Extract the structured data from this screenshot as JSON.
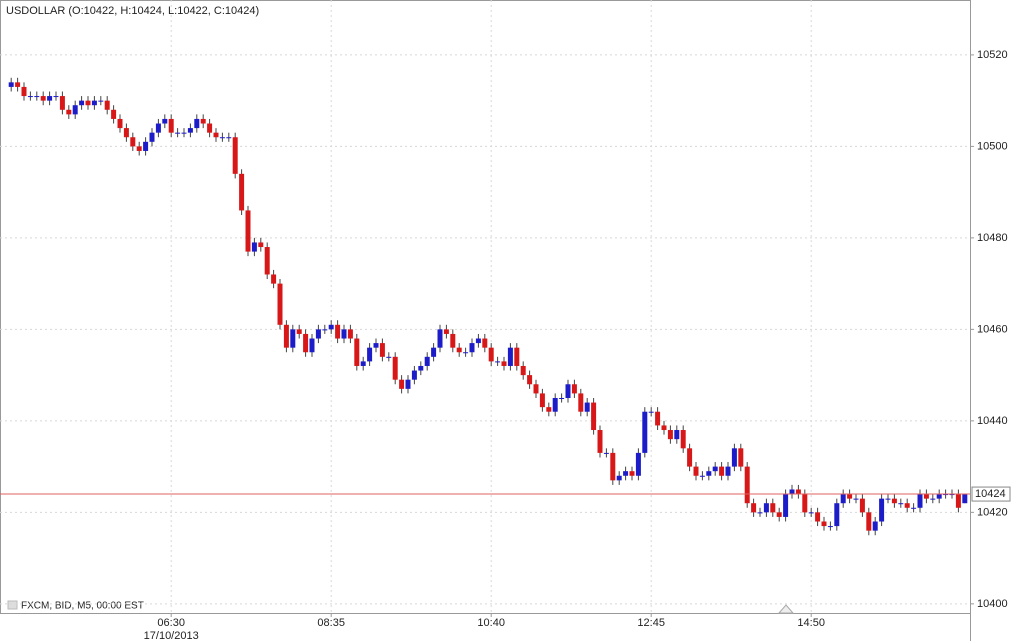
{
  "chart_data": {
    "type": "candlestick",
    "title": "USDOLLAR (O:10422, H:10424, L:10422, C:10424)",
    "footer": "FXCM, BID, M5, 00:00 EST",
    "date_label": "17/10/2013",
    "last_price": 10424,
    "up_color": "#1c1cc8",
    "down_color": "#d81818",
    "last_price_color": "#e06060",
    "grid": true,
    "ylim": [
      10398,
      10532
    ],
    "yticks": [
      10400,
      10420,
      10440,
      10460,
      10480,
      10500,
      10520
    ],
    "categories": [
      null,
      null,
      null,
      null,
      null,
      null,
      null,
      null,
      null,
      null,
      null,
      null,
      null,
      null,
      null,
      null,
      null,
      null,
      null,
      null,
      null,
      null,
      null,
      null,
      null,
      "06:30",
      null,
      null,
      null,
      null,
      null,
      null,
      null,
      null,
      null,
      null,
      null,
      null,
      null,
      null,
      null,
      null,
      null,
      null,
      null,
      null,
      null,
      null,
      null,
      null,
      "08:35",
      null,
      null,
      null,
      null,
      null,
      null,
      null,
      null,
      null,
      null,
      null,
      null,
      null,
      null,
      null,
      null,
      null,
      null,
      null,
      null,
      null,
      null,
      null,
      null,
      "10:40",
      null,
      null,
      null,
      null,
      null,
      null,
      null,
      null,
      null,
      null,
      null,
      null,
      null,
      null,
      null,
      null,
      null,
      null,
      null,
      null,
      null,
      null,
      null,
      null,
      "12:45",
      null,
      null,
      null,
      null,
      null,
      null,
      null,
      null,
      null,
      null,
      null,
      null,
      null,
      null,
      null,
      null,
      null,
      null,
      null,
      null,
      null,
      null,
      null,
      null,
      "14:50",
      null,
      null,
      null,
      null,
      null,
      null,
      null,
      null,
      null,
      null,
      null,
      null,
      null,
      null,
      null,
      null,
      null,
      null,
      null,
      null,
      null,
      null,
      null,
      null
    ],
    "open": [
      10513,
      10514,
      10513,
      10511,
      10511,
      10511,
      10510,
      10511,
      10511,
      10508,
      10507,
      10509,
      10510,
      10509,
      10510,
      10510,
      10508,
      10506,
      10504,
      10502,
      10500,
      10499,
      10501,
      10503,
      10505,
      10506,
      10503,
      10503,
      10503,
      10504,
      10506,
      10505,
      10503,
      10502,
      10502,
      10502,
      10494,
      10486,
      10477,
      10479,
      10478,
      10472,
      10470,
      10461,
      10456,
      10460,
      10459,
      10455,
      10458,
      10460,
      10460,
      10461,
      10458,
      10460,
      10458,
      10452,
      10453,
      10456,
      10457,
      10454,
      10454,
      10449,
      10447,
      10449,
      10451,
      10452,
      10454,
      10456,
      10460,
      10459,
      10456,
      10455,
      10455,
      10457,
      10458,
      10456,
      10453,
      10453,
      10452,
      10456,
      10452,
      10450,
      10448,
      10446,
      10443,
      10442,
      10445,
      10445,
      10448,
      10446,
      10442,
      10444,
      10438,
      10433,
      10433,
      10427,
      10428,
      10429,
      10428,
      10433,
      10442,
      10442,
      10439,
      10438,
      10436,
      10438,
      10434,
      10430,
      10428,
      10428,
      10429,
      10430,
      10428,
      10430,
      10434,
      10430,
      10422,
      10420,
      10420,
      10422,
      10420,
      10419,
      10424,
      10425,
      10424,
      10420,
      10420,
      10418,
      10417,
      10417,
      10422,
      10424,
      10423,
      10423,
      10420,
      10416,
      10418,
      10423,
      10423,
      10422,
      10422,
      10421,
      10421,
      10424,
      10423,
      10423,
      10424,
      10424,
      10424,
      10422
    ],
    "high": [
      10515,
      10515,
      10514,
      10512,
      10512,
      10512,
      10512,
      10512,
      10512,
      10509,
      10510,
      10511,
      10511,
      10511,
      10511,
      10511,
      10509,
      10507,
      10505,
      10503,
      10501,
      10502,
      10504,
      10506,
      10507,
      10507,
      10504,
      10504,
      10505,
      10507,
      10507,
      10506,
      10504,
      10503,
      10503,
      10503,
      10495,
      10487,
      10480,
      10480,
      10479,
      10473,
      10471,
      10462,
      10461,
      10461,
      10460,
      10459,
      10461,
      10461,
      10462,
      10462,
      10461,
      10461,
      10459,
      10454,
      10457,
      10458,
      10458,
      10455,
      10455,
      10450,
      10450,
      10452,
      10453,
      10455,
      10457,
      10461,
      10461,
      10460,
      10457,
      10456,
      10458,
      10459,
      10459,
      10457,
      10454,
      10454,
      10457,
      10457,
      10453,
      10451,
      10449,
      10447,
      10444,
      10446,
      10446,
      10449,
      10449,
      10447,
      10445,
      10445,
      10439,
      10434,
      10434,
      10429,
      10430,
      10430,
      10434,
      10443,
      10443,
      10443,
      10440,
      10439,
      10439,
      10439,
      10435,
      10431,
      10429,
      10430,
      10431,
      10431,
      10431,
      10435,
      10435,
      10431,
      10423,
      10421,
      10423,
      10423,
      10421,
      10425,
      10426,
      10426,
      10425,
      10421,
      10421,
      10419,
      10418,
      10423,
      10425,
      10425,
      10424,
      10424,
      10421,
      10419,
      10424,
      10424,
      10424,
      10423,
      10423,
      10422,
      10425,
      10425,
      10424,
      10425,
      10425,
      10425,
      10425,
      10424
    ],
    "low": [
      10512,
      10512,
      10510,
      10510,
      10510,
      10509,
      10509,
      10510,
      10507,
      10506,
      10506,
      10508,
      10508,
      10508,
      10509,
      10507,
      10505,
      10503,
      10501,
      10499,
      10498,
      10498,
      10500,
      10502,
      10504,
      10502,
      10502,
      10502,
      10502,
      10503,
      10504,
      10502,
      10501,
      10501,
      10501,
      10493,
      10485,
      10476,
      10476,
      10477,
      10471,
      10469,
      10460,
      10455,
      10455,
      10458,
      10454,
      10454,
      10457,
      10459,
      10459,
      10457,
      10457,
      10457,
      10451,
      10451,
      10452,
      10455,
      10453,
      10453,
      10448,
      10446,
      10446,
      10448,
      10450,
      10451,
      10453,
      10455,
      10458,
      10455,
      10454,
      10454,
      10454,
      10456,
      10455,
      10452,
      10452,
      10451,
      10451,
      10451,
      10449,
      10447,
      10445,
      10442,
      10441,
      10441,
      10444,
      10444,
      10445,
      10441,
      10441,
      10437,
      10432,
      10432,
      10426,
      10426,
      10427,
      10427,
      10427,
      10432,
      10441,
      10438,
      10437,
      10435,
      10435,
      10433,
      10429,
      10427,
      10427,
      10427,
      10428,
      10427,
      10427,
      10429,
      10429,
      10421,
      10419,
      10419,
      10419,
      10419,
      10418,
      10418,
      10423,
      10423,
      10419,
      10419,
      10417,
      10416,
      10416,
      10416,
      10421,
      10422,
      10422,
      10419,
      10415,
      10415,
      10417,
      10422,
      10421,
      10421,
      10420,
      10420,
      10420,
      10422,
      10422,
      10422,
      10423,
      10423,
      10420,
      10422
    ],
    "close": [
      10514,
      10513,
      10511,
      10511,
      10511,
      10510,
      10511,
      10511,
      10508,
      10507,
      10509,
      10510,
      10509,
      10510,
      10510,
      10508,
      10506,
      10504,
      10502,
      10500,
      10499,
      10501,
      10503,
      10505,
      10506,
      10503,
      10503,
      10503,
      10504,
      10506,
      10505,
      10503,
      10502,
      10502,
      10502,
      10494,
      10486,
      10477,
      10479,
      10478,
      10472,
      10470,
      10461,
      10456,
      10460,
      10459,
      10455,
      10458,
      10460,
      10460,
      10461,
      10458,
      10460,
      10458,
      10452,
      10453,
      10456,
      10457,
      10454,
      10454,
      10449,
      10447,
      10449,
      10451,
      10452,
      10454,
      10456,
      10460,
      10459,
      10456,
      10455,
      10455,
      10457,
      10458,
      10456,
      10453,
      10453,
      10452,
      10456,
      10452,
      10450,
      10448,
      10446,
      10443,
      10442,
      10445,
      10445,
      10448,
      10446,
      10442,
      10444,
      10438,
      10433,
      10433,
      10427,
      10428,
      10429,
      10428,
      10433,
      10442,
      10442,
      10439,
      10438,
      10436,
      10438,
      10434,
      10430,
      10428,
      10428,
      10429,
      10430,
      10428,
      10430,
      10434,
      10430,
      10422,
      10420,
      10420,
      10422,
      10420,
      10419,
      10424,
      10425,
      10424,
      10420,
      10420,
      10418,
      10417,
      10417,
      10422,
      10424,
      10423,
      10423,
      10420,
      10416,
      10418,
      10423,
      10423,
      10422,
      10422,
      10421,
      10421,
      10424,
      10423,
      10423,
      10424,
      10424,
      10424,
      10421,
      10424
    ]
  }
}
